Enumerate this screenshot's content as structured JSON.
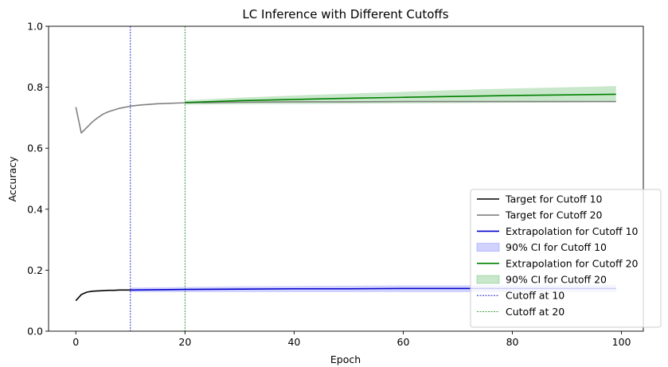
{
  "chart_data": {
    "type": "line",
    "title": "LC Inference with Different Cutoffs",
    "xlabel": "Epoch",
    "ylabel": "Accuracy",
    "xlim": [
      -5,
      104
    ],
    "ylim": [
      0,
      1
    ],
    "xticks": [
      0,
      20,
      40,
      60,
      80,
      100
    ],
    "yticks": [
      0.0,
      0.2,
      0.4,
      0.6,
      0.8,
      1.0
    ],
    "xtick_labels": [
      "0",
      "20",
      "40",
      "60",
      "80",
      "100"
    ],
    "ytick_labels": [
      "0.0",
      "0.2",
      "0.4",
      "0.6",
      "0.8",
      "1.0"
    ],
    "grid": false,
    "legend_position": "lower-right",
    "series": [
      {
        "name": "Target for Cutoff 10",
        "kind": "line",
        "color": "#000000",
        "x": [
          0,
          1,
          2,
          3,
          4,
          5,
          6,
          7,
          8,
          9,
          10
        ],
        "y": [
          0.1,
          0.12,
          0.128,
          0.131,
          0.132,
          0.133,
          0.134,
          0.134,
          0.135,
          0.135,
          0.135
        ]
      },
      {
        "name": "Target for Cutoff 20",
        "kind": "line",
        "color": "#808080",
        "x": [
          0,
          1,
          2,
          3,
          4,
          5,
          6,
          8,
          10,
          12,
          15,
          20,
          30,
          40,
          50,
          60,
          70,
          80,
          90,
          99
        ],
        "y": [
          0.735,
          0.65,
          0.668,
          0.686,
          0.7,
          0.712,
          0.72,
          0.731,
          0.738,
          0.742,
          0.746,
          0.749,
          0.751,
          0.752,
          0.752,
          0.753,
          0.753,
          0.753,
          0.753,
          0.753
        ]
      },
      {
        "name": "Extrapolation for Cutoff 10",
        "kind": "line",
        "color": "#0000cc",
        "x": [
          10,
          20,
          30,
          40,
          50,
          60,
          70,
          80,
          90,
          99
        ],
        "y": [
          0.135,
          0.137,
          0.138,
          0.139,
          0.139,
          0.14,
          0.14,
          0.14,
          0.14,
          0.14
        ]
      },
      {
        "name": "90% CI for Cutoff 10",
        "kind": "band",
        "color": "#6a6aff",
        "x": [
          10,
          20,
          30,
          40,
          50,
          60,
          70,
          80,
          90,
          99
        ],
        "lower": [
          0.128,
          0.128,
          0.128,
          0.128,
          0.128,
          0.128,
          0.128,
          0.128,
          0.128,
          0.128
        ],
        "upper": [
          0.143,
          0.145,
          0.147,
          0.148,
          0.149,
          0.15,
          0.15,
          0.151,
          0.151,
          0.152
        ]
      },
      {
        "name": "Extrapolation for Cutoff 20",
        "kind": "line",
        "color": "#008000",
        "x": [
          20,
          30,
          40,
          50,
          60,
          70,
          80,
          90,
          99
        ],
        "y": [
          0.75,
          0.756,
          0.76,
          0.764,
          0.767,
          0.77,
          0.773,
          0.775,
          0.777
        ]
      },
      {
        "name": "90% CI for Cutoff 20",
        "kind": "band",
        "color": "#4caf50",
        "x": [
          20,
          30,
          40,
          50,
          60,
          70,
          80,
          90,
          99
        ],
        "lower": [
          0.743,
          0.744,
          0.745,
          0.746,
          0.747,
          0.748,
          0.749,
          0.75,
          0.751
        ],
        "upper": [
          0.757,
          0.766,
          0.773,
          0.779,
          0.785,
          0.791,
          0.796,
          0.8,
          0.804
        ]
      },
      {
        "name": "Cutoff at 10",
        "kind": "vline",
        "color": "#0000cc",
        "x": 10
      },
      {
        "name": "Cutoff at 20",
        "kind": "vline",
        "color": "#008000",
        "x": 20
      }
    ]
  }
}
